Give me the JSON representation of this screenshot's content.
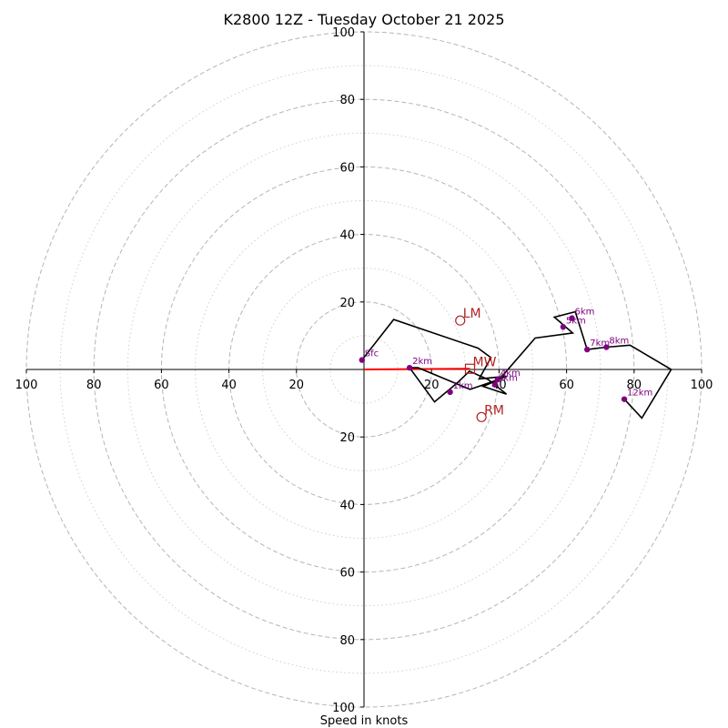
{
  "chart_data": {
    "type": "hodograph",
    "title": "K2800 12Z - Tuesday October 21 2025",
    "xlabel": "Speed in knots",
    "max_speed": 100,
    "ring_major": [
      20,
      40,
      60,
      80,
      100
    ],
    "ring_minor": [
      10,
      30,
      50,
      70,
      90
    ],
    "x_tick_labels": [
      "100",
      "80",
      "60",
      "40",
      "20",
      "20",
      "40",
      "60",
      "80",
      "100"
    ],
    "x_tick_values": [
      -100,
      -80,
      -60,
      -40,
      -20,
      20,
      40,
      60,
      80,
      100
    ],
    "y_tick_labels": [
      "100",
      "80",
      "60",
      "40",
      "20",
      "20",
      "40",
      "60",
      "80",
      "100"
    ],
    "y_tick_values": [
      100,
      80,
      60,
      40,
      20,
      -20,
      -40,
      -60,
      -80,
      -100
    ],
    "trace": [
      [
        -0.6,
        2.8
      ],
      [
        8.8,
        14.8
      ],
      [
        33.8,
        6.3
      ],
      [
        37.6,
        3.5
      ],
      [
        34.1,
        -2.8
      ],
      [
        42.2,
        -2.0
      ],
      [
        35.3,
        -5.0
      ],
      [
        42.2,
        -7.3
      ],
      [
        36.8,
        -3.0
      ],
      [
        31.2,
        -0.5
      ],
      [
        27.7,
        -3.9
      ],
      [
        20.9,
        -9.6
      ],
      [
        13.5,
        0.5
      ],
      [
        16.0,
        0.5
      ],
      [
        31.4,
        -5.9
      ],
      [
        40.1,
        -2.9
      ],
      [
        50.7,
        9.3
      ],
      [
        61.8,
        10.8
      ],
      [
        56.4,
        15.5
      ],
      [
        62.6,
        17.1
      ],
      [
        66.1,
        5.9
      ],
      [
        71.8,
        6.6
      ],
      [
        78.8,
        7.2
      ],
      [
        91.0,
        0.0
      ],
      [
        82.3,
        -14.4
      ],
      [
        77.1,
        -8.8
      ]
    ],
    "height_markers": [
      {
        "label": "Sfc",
        "u": -0.6,
        "v": 2.8
      },
      {
        "label": "1km",
        "u": 25.5,
        "v": -6.7
      },
      {
        "label": "2km",
        "u": 13.5,
        "v": 0.5
      },
      {
        "label": "3km",
        "u": 38.8,
        "v": -4.5
      },
      {
        "label": "4km",
        "u": 39.6,
        "v": -3.0
      },
      {
        "label": "5km",
        "u": 59.0,
        "v": 12.6
      },
      {
        "label": "6km",
        "u": 61.6,
        "v": 15.2
      },
      {
        "label": "7km",
        "u": 66.1,
        "v": 5.9
      },
      {
        "label": "8km",
        "u": 71.8,
        "v": 6.6
      },
      {
        "label": "12km",
        "u": 77.1,
        "v": -8.8
      }
    ],
    "storm_motion": [
      {
        "label": "LM",
        "u": 28.5,
        "v": 14.5,
        "marker": "circle"
      },
      {
        "label": "RM",
        "u": 34.8,
        "v": -14.1,
        "marker": "circle"
      },
      {
        "label": "MW",
        "u": 31.4,
        "v": 0.2,
        "marker": "square"
      }
    ],
    "shear_vector": {
      "from_u": 0,
      "from_v": 0,
      "to_u": 31.4,
      "to_v": 0.2
    },
    "colors": {
      "trace": "#000000",
      "height_marker": "#800080",
      "storm_motion": "#b22222",
      "shear_vector": "#ff0000",
      "ring": "#b5b5b5",
      "axis": "#000000"
    }
  }
}
